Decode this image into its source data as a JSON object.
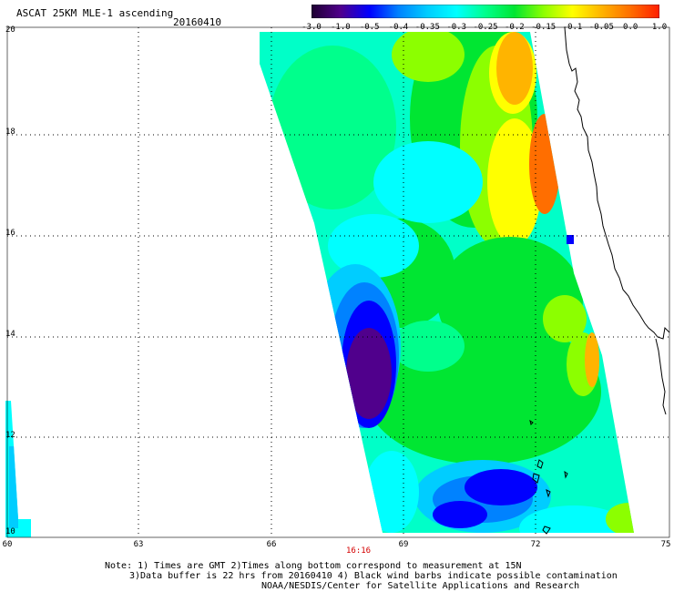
{
  "header": {
    "title": "ASCAT 25KM MLE-1 ascending",
    "date": "20160410"
  },
  "colorbar": {
    "labels": [
      "-3.0",
      "-1.0",
      "-0.5",
      "-0.4",
      "-0.35",
      "-0.3",
      "-0.25",
      "-0.2",
      "-0.15",
      "-0.1",
      "-0.05",
      "0.0",
      "1.0"
    ],
    "colors": [
      "#1e0032",
      "#50008c",
      "#0000ff",
      "#0082ff",
      "#00cdff",
      "#00ffff",
      "#00ff8c",
      "#00e632",
      "#8cff00",
      "#ffff00",
      "#ffb400",
      "#ff6e00",
      "#ff1e00"
    ]
  },
  "axes": {
    "y_labels": [
      "20",
      "18",
      "16",
      "14",
      "12",
      "10"
    ],
    "x_labels": [
      "60",
      "63",
      "66",
      "69",
      "72",
      "75"
    ],
    "time_label": "16:16"
  },
  "notes": {
    "line1": "Note: 1) Times are GMT 2)Times along bottom correspond to measurement at 15N",
    "line2": "3)Data buffer is 22 hrs from 20160410 4) Black wind barbs indicate possible contamination",
    "line3": "NOAA/NESDIS/Center for Satellite Applications and Research"
  }
}
